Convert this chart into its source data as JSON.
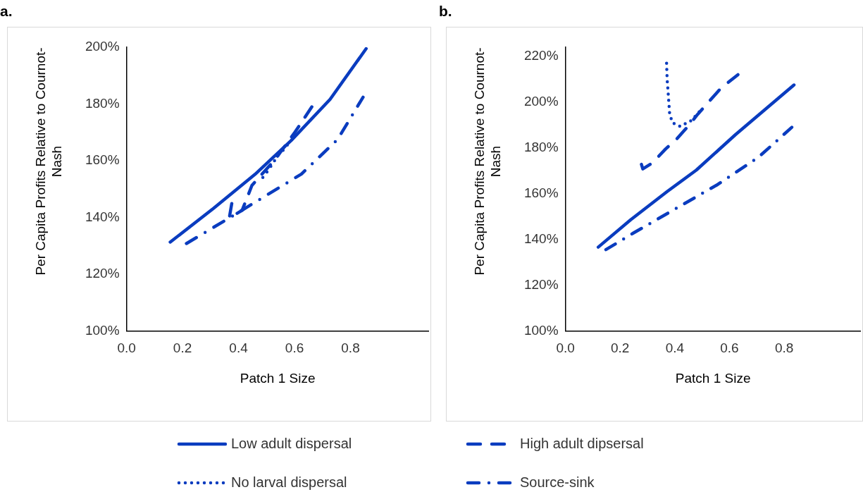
{
  "chart_data": [
    {
      "type": "line",
      "title": "a.",
      "xlabel": "Patch 1 Size",
      "ylabel": "Per Capita Profits Relative to Cournot-Nash",
      "xlim": [
        0,
        1.08
      ],
      "xticks": [
        {
          "value": 0,
          "label": "0.0"
        },
        0.2,
        0.4,
        0.6,
        0.8
      ],
      "ylim": [
        100,
        200
      ],
      "yticks": [
        {
          "value": 100,
          "label": "100%"
        },
        {
          "value": 120,
          "label": "120%"
        },
        {
          "value": 140,
          "label": "140%"
        },
        {
          "value": 160,
          "label": "160%"
        },
        {
          "value": 180,
          "label": "180%"
        },
        {
          "value": 200,
          "label": "200%"
        }
      ],
      "grid": false,
      "legend": "bottom",
      "marker": "none",
      "series": [
        {
          "name": "Low adult dispersal",
          "color": "#0a3cbf",
          "line_style": "solid",
          "x": [
            0.156,
            0.311,
            0.459,
            0.588,
            0.727,
            0.856
          ],
          "values": [
            131.3,
            143.2,
            155.2,
            167.1,
            181.6,
            199.5
          ]
        },
        {
          "name": "High adult dipsersal",
          "color": "#0a3cbf",
          "line_style": "dashed",
          "x": [
            0.376,
            0.367,
            0.413,
            0.448,
            0.533,
            0.602,
            0.662
          ],
          "values": [
            144.9,
            139.8,
            142.5,
            151.3,
            160.7,
            170.1,
            179.0
          ]
        },
        {
          "name": "No larval dispersal",
          "color": "#0a3cbf",
          "line_style": "dotted",
          "x": [
            0.487,
            0.507,
            0.542,
            0.568,
            0.587
          ],
          "values": [
            154.1,
            156.7,
            162.0,
            164.5,
            167.5
          ]
        },
        {
          "name": "Source-sink",
          "color": "#0a3cbf",
          "line_style": "dashdot",
          "x": [
            0.214,
            0.367,
            0.47,
            0.625,
            0.754,
            0.845
          ],
          "values": [
            130.8,
            139.8,
            146.0,
            155.3,
            167.5,
            182.4
          ]
        }
      ]
    },
    {
      "type": "line",
      "title": "b.",
      "xlabel": "Patch 1 Size",
      "ylabel": "Per Capita Profits Relative to Cournot-Nash",
      "xlim": [
        0,
        1.08
      ],
      "xticks": [
        {
          "value": 0,
          "label": "0.0"
        },
        0.2,
        0.4,
        0.6,
        0.8
      ],
      "ylim": [
        100,
        224
      ],
      "yticks": [
        {
          "value": 100,
          "label": "100%"
        },
        {
          "value": 120,
          "label": "120%"
        },
        {
          "value": 140,
          "label": "140%"
        },
        {
          "value": 160,
          "label": "160%"
        },
        {
          "value": 180,
          "label": "180%"
        },
        {
          "value": 200,
          "label": "200%"
        },
        {
          "value": 220,
          "label": "220%"
        }
      ],
      "grid": false,
      "marker": "none",
      "series": [
        {
          "color": "#0a3cbf",
          "line_style": "solid",
          "x": [
            0.12,
            0.238,
            0.372,
            0.479,
            0.622,
            0.836
          ],
          "values": [
            136.6,
            148.5,
            160.9,
            170.3,
            185.8,
            207.5
          ]
        },
        {
          "color": "#0a3cbf",
          "line_style": "dashed",
          "x": [
            0.278,
            0.283,
            0.318,
            0.367,
            0.408,
            0.452,
            0.483,
            0.568,
            0.631
          ],
          "values": [
            172.8,
            170.8,
            173.4,
            179.6,
            184.0,
            189.9,
            194.6,
            206.0,
            212.0
          ]
        },
        {
          "color": "#0a3cbf",
          "line_style": "dotted",
          "x": [
            0.37,
            0.372,
            0.376,
            0.381,
            0.391,
            0.419,
            0.461,
            0.504
          ],
          "values": [
            217.0,
            210.0,
            203.6,
            195.1,
            191.0,
            189.4,
            192.0,
            197.7
          ]
        },
        {
          "color": "#0a3cbf",
          "line_style": "dashdot",
          "x": [
            0.148,
            0.249,
            0.403,
            0.557,
            0.705,
            0.828
          ],
          "values": [
            135.5,
            142.8,
            153.4,
            164.0,
            175.8,
            189.0
          ]
        }
      ]
    }
  ]
}
